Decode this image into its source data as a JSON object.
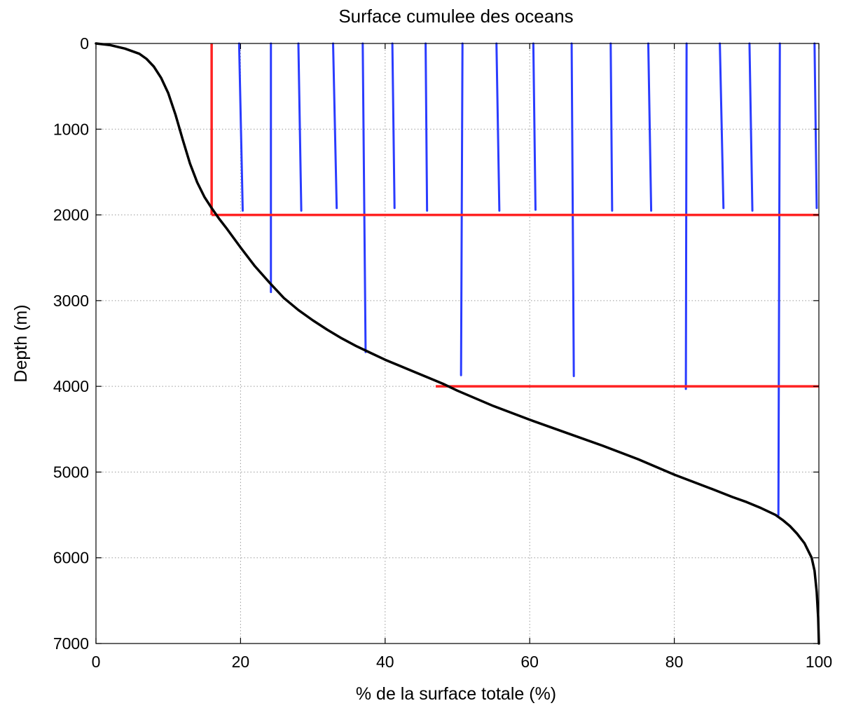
{
  "chart_data": {
    "type": "line",
    "title": "Surface cumulee des oceans",
    "xlabel": "% de la surface totale (%)",
    "ylabel": "Depth (m)",
    "xlim": [
      0,
      100
    ],
    "ylim": [
      0,
      7000
    ],
    "y_inverted": true,
    "grid": true,
    "x_ticks": [
      0,
      20,
      40,
      60,
      80,
      100
    ],
    "y_ticks": [
      0,
      1000,
      2000,
      3000,
      4000,
      5000,
      6000,
      7000
    ],
    "series": [
      {
        "color": "#000000",
        "x": [
          0,
          2,
          4,
          6,
          7,
          8,
          9,
          10,
          11,
          12,
          13,
          14,
          15,
          16,
          17,
          18,
          20,
          22,
          24,
          26,
          28,
          30,
          32,
          34,
          36,
          38,
          40,
          42,
          44,
          46,
          48,
          50,
          55,
          60,
          65,
          70,
          75,
          80,
          85,
          88,
          90,
          92,
          94,
          95,
          96,
          97,
          98,
          99,
          99.4,
          99.7,
          99.9,
          100
        ],
        "y": [
          0,
          20,
          60,
          120,
          180,
          270,
          400,
          580,
          830,
          1120,
          1400,
          1620,
          1790,
          1920,
          2040,
          2150,
          2380,
          2600,
          2790,
          2970,
          3110,
          3230,
          3340,
          3440,
          3530,
          3610,
          3690,
          3760,
          3830,
          3900,
          3970,
          4050,
          4230,
          4390,
          4540,
          4690,
          4850,
          5030,
          5190,
          5290,
          5350,
          5420,
          5500,
          5560,
          5630,
          5720,
          5830,
          6000,
          6150,
          6400,
          6700,
          7000
        ]
      }
    ],
    "reference_lines": {
      "color": "#ff2222",
      "segments": [
        {
          "x": [
            16,
            16
          ],
          "y": [
            0,
            2000
          ]
        },
        {
          "x": [
            16,
            100
          ],
          "y": [
            2000,
            2000
          ]
        },
        {
          "x": [
            47,
            100
          ],
          "y": [
            4000,
            4000
          ]
        }
      ]
    },
    "vertical_markers": {
      "color": "#2a3cff",
      "segments": [
        {
          "x": [
            19.8,
            20.3
          ],
          "y": [
            0,
            1950
          ]
        },
        {
          "x": [
            24.2,
            24.2
          ],
          "y": [
            0,
            2900
          ]
        },
        {
          "x": [
            28.0,
            28.4
          ],
          "y": [
            0,
            1950
          ]
        },
        {
          "x": [
            32.8,
            33.3
          ],
          "y": [
            0,
            1920
          ]
        },
        {
          "x": [
            36.9,
            37.3
          ],
          "y": [
            0,
            3600
          ]
        },
        {
          "x": [
            41.0,
            41.3
          ],
          "y": [
            0,
            1920
          ]
        },
        {
          "x": [
            45.6,
            45.8
          ],
          "y": [
            0,
            1950
          ]
        },
        {
          "x": [
            50.7,
            50.5
          ],
          "y": [
            0,
            3870
          ]
        },
        {
          "x": [
            55.4,
            55.8
          ],
          "y": [
            0,
            1950
          ]
        },
        {
          "x": [
            60.5,
            60.8
          ],
          "y": [
            0,
            1940
          ]
        },
        {
          "x": [
            65.8,
            66.1
          ],
          "y": [
            0,
            3880
          ]
        },
        {
          "x": [
            71.2,
            71.4
          ],
          "y": [
            0,
            1950
          ]
        },
        {
          "x": [
            76.4,
            76.8
          ],
          "y": [
            0,
            1950
          ]
        },
        {
          "x": [
            81.7,
            81.6
          ],
          "y": [
            0,
            4030
          ]
        },
        {
          "x": [
            86.3,
            86.8
          ],
          "y": [
            0,
            1920
          ]
        },
        {
          "x": [
            90.4,
            90.8
          ],
          "y": [
            0,
            1950
          ]
        },
        {
          "x": [
            94.6,
            94.4
          ],
          "y": [
            0,
            5500
          ]
        },
        {
          "x": [
            99.4,
            99.7
          ],
          "y": [
            0,
            1920
          ]
        }
      ]
    }
  }
}
